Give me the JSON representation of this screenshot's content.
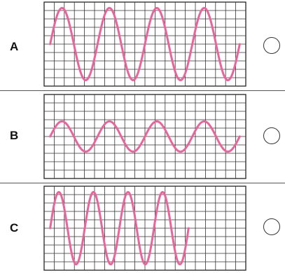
{
  "options": [
    {
      "label": "A",
      "wave": {
        "cycles": 4.0,
        "amplitude": 0.86,
        "phase": 0.0
      }
    },
    {
      "label": "B",
      "wave": {
        "cycles": 4.0,
        "amplitude": 0.36,
        "phase": 0.0
      }
    },
    {
      "label": "C",
      "wave": {
        "cycles": 4.0,
        "amplitude": 0.86,
        "phase": 0.0
      }
    }
  ],
  "colors": {
    "wave": "#e8649c",
    "grid": "#333333",
    "background": "#ffffff"
  }
}
